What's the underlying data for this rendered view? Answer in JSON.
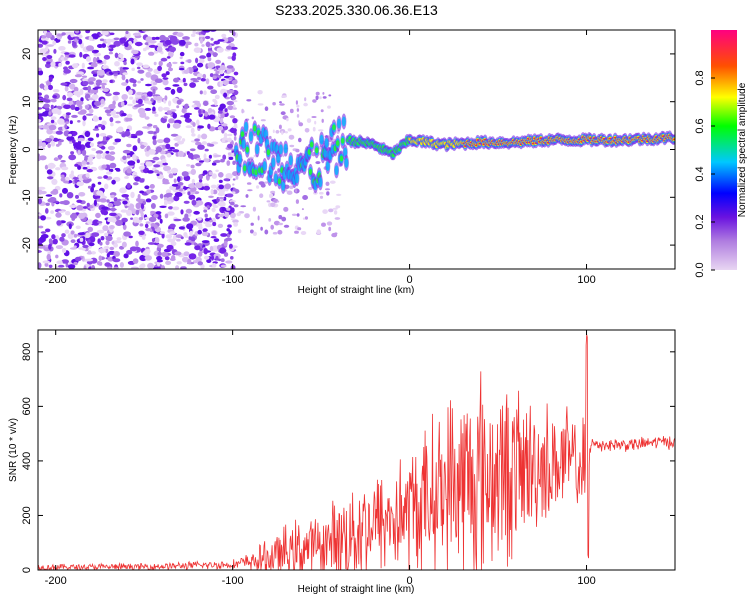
{
  "title": "S233.2025.330.06.36.E13",
  "chart_data": [
    {
      "type": "heatmap",
      "name": "spectrogram",
      "xlabel": "Height of straight line (km)",
      "ylabel": "Frequency (Hz)",
      "xlim": [
        -210,
        150
      ],
      "ylim": [
        -25,
        25
      ],
      "xticks": [
        -200,
        -100,
        0,
        100
      ],
      "yticks": [
        -20,
        -10,
        0,
        10,
        20
      ],
      "colorbar": {
        "label": "Normalized spectral amplitude",
        "range": [
          0,
          1
        ],
        "ticks": [
          0.0,
          0.2,
          0.4,
          0.6,
          0.8
        ]
      },
      "features": [
        {
          "region": "noise",
          "x_range": [
            -210,
            -98
          ],
          "description": "scattered low-amplitude purple speckle"
        },
        {
          "region": "signal",
          "x": [
            -98,
            -85,
            -75,
            -65,
            -55,
            -45,
            -35,
            -20,
            -10,
            0,
            20,
            40,
            60,
            80,
            95,
            100,
            120,
            150
          ],
          "freq": [
            1,
            0,
            -3,
            -2,
            -4,
            -1,
            2,
            1,
            -1,
            2,
            1,
            1.5,
            1.5,
            2,
            2,
            2,
            2,
            2.5
          ]
        }
      ]
    },
    {
      "type": "line",
      "name": "snr",
      "xlabel": "Height of straight line (km)",
      "ylabel": "SNR (10 * v/v)",
      "xlim": [
        -210,
        150
      ],
      "ylim": [
        0,
        880
      ],
      "xticks": [
        -200,
        -100,
        0,
        100
      ],
      "yticks": [
        0,
        200,
        400,
        600,
        800
      ],
      "color": "#ee3333",
      "envelope": {
        "x": [
          -210,
          -150,
          -100,
          -90,
          -70,
          -60,
          -50,
          -40,
          -30,
          -20,
          -10,
          0,
          10,
          20,
          30,
          40,
          50,
          60,
          70,
          80,
          90,
          98,
          100,
          102,
          110,
          120,
          130,
          140,
          150
        ],
        "base": [
          10,
          12,
          20,
          30,
          60,
          80,
          90,
          110,
          150,
          170,
          190,
          210,
          260,
          300,
          320,
          340,
          350,
          360,
          380,
          390,
          400,
          380,
          400,
          460,
          460,
          460,
          460,
          470,
          470
        ],
        "amp": [
          15,
          15,
          20,
          40,
          120,
          140,
          120,
          200,
          250,
          220,
          260,
          300,
          320,
          400,
          450,
          480,
          400,
          380,
          300,
          260,
          230,
          200,
          480,
          40,
          30,
          30,
          30,
          30,
          30
        ]
      }
    }
  ]
}
